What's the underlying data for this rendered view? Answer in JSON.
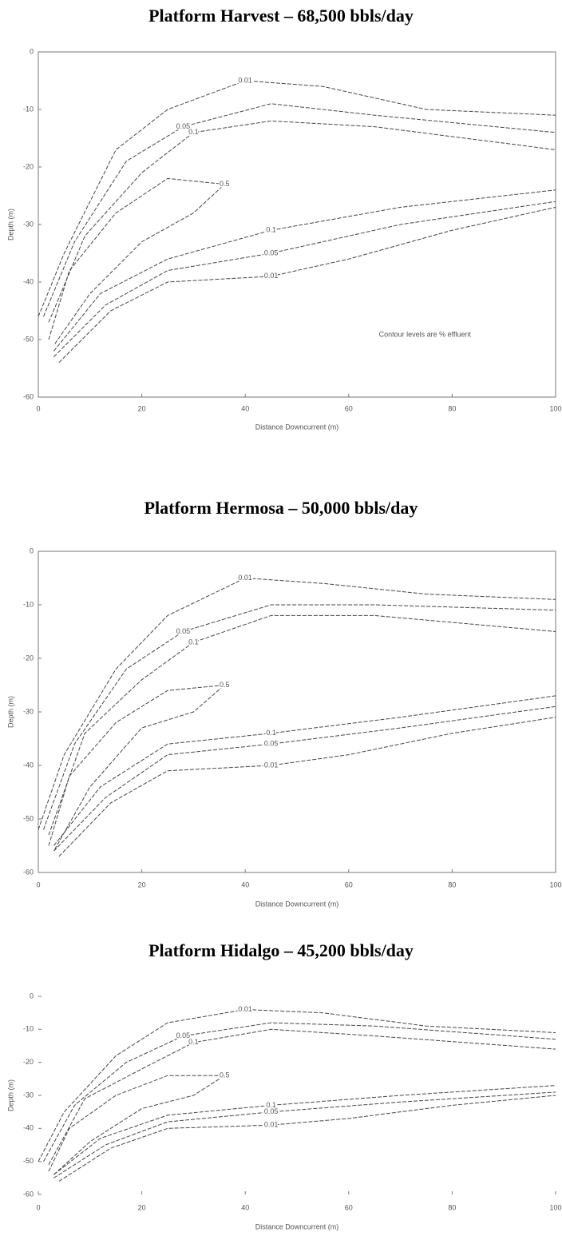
{
  "chart_data": [
    {
      "type": "contour",
      "title": "Platform Harvest – 68,500 bbls/day",
      "xlabel": "Distance Downcurrent (m)",
      "ylabel": "Depth (m)",
      "annotation": "Contour levels are % effluent",
      "frame": true,
      "xlim": [
        0,
        100
      ],
      "xticks": [
        0,
        20,
        40,
        60,
        80,
        100
      ],
      "ylim": [
        -60,
        0
      ],
      "yticks": [
        0,
        -10,
        -20,
        -30,
        -40,
        -50,
        -60
      ],
      "contours": [
        {
          "level": 0.01,
          "x": [
            0,
            5,
            15,
            25,
            40,
            55,
            75,
            100
          ],
          "y": [
            -46,
            -35,
            -17,
            -10,
            -5,
            -6,
            -10,
            -11
          ]
        },
        {
          "level": 0.05,
          "x": [
            1,
            7,
            17,
            28,
            45,
            65,
            100
          ],
          "y": [
            -46,
            -33,
            -19,
            -13,
            -9,
            -11,
            -14
          ]
        },
        {
          "level": 0.1,
          "x": [
            2,
            9,
            20,
            30,
            45,
            65,
            100
          ],
          "y": [
            -47,
            -32,
            -21,
            -14,
            -12,
            -13,
            -17
          ]
        },
        {
          "level": 0.5,
          "x": [
            2,
            6,
            15,
            25,
            36,
            30,
            20,
            10,
            3
          ],
          "y": [
            -50,
            -38,
            -28,
            -22,
            -23,
            -28,
            -33,
            -42,
            -51
          ]
        },
        {
          "level": 0.1,
          "x": [
            3,
            12,
            25,
            45,
            70,
            100
          ],
          "y": [
            -52,
            -42,
            -36,
            -31,
            -27,
            -24
          ]
        },
        {
          "level": 0.05,
          "x": [
            3,
            13,
            25,
            45,
            70,
            100
          ],
          "y": [
            -53,
            -44,
            -38,
            -35,
            -30,
            -26
          ]
        },
        {
          "level": 0.01,
          "x": [
            4,
            14,
            25,
            45,
            60,
            80,
            100
          ],
          "y": [
            -54,
            -45,
            -40,
            -39,
            -36,
            -31,
            -27
          ]
        }
      ]
    },
    {
      "type": "contour",
      "title": "Platform Hermosa – 50,000 bbls/day",
      "xlabel": "Distance Downcurrent (m)",
      "ylabel": "Depth (m)",
      "frame": true,
      "xlim": [
        0,
        100
      ],
      "xticks": [
        0,
        20,
        40,
        60,
        80,
        100
      ],
      "ylim": [
        -60,
        0
      ],
      "yticks": [
        0,
        -10,
        -20,
        -30,
        -40,
        -50,
        -60
      ],
      "contours": [
        {
          "level": 0.01,
          "x": [
            0,
            5,
            15,
            25,
            40,
            55,
            75,
            100
          ],
          "y": [
            -52,
            -38,
            -22,
            -12,
            -5,
            -6,
            -8,
            -9
          ]
        },
        {
          "level": 0.05,
          "x": [
            1,
            7,
            17,
            28,
            45,
            65,
            100
          ],
          "y": [
            -52,
            -36,
            -22,
            -15,
            -10,
            -10,
            -11
          ]
        },
        {
          "level": 0.1,
          "x": [
            2,
            9,
            20,
            30,
            45,
            65,
            100
          ],
          "y": [
            -53,
            -34,
            -24,
            -17,
            -12,
            -12,
            -15
          ]
        },
        {
          "level": 0.5,
          "x": [
            2,
            6,
            15,
            25,
            36,
            30,
            20,
            10,
            3
          ],
          "y": [
            -55,
            -42,
            -32,
            -26,
            -25,
            -30,
            -33,
            -44,
            -56
          ]
        },
        {
          "level": 0.1,
          "x": [
            3,
            12,
            25,
            45,
            70,
            100
          ],
          "y": [
            -55,
            -44,
            -36,
            -34,
            -31,
            -27
          ]
        },
        {
          "level": 0.05,
          "x": [
            3,
            13,
            25,
            45,
            70,
            100
          ],
          "y": [
            -56,
            -46,
            -38,
            -36,
            -33,
            -29
          ]
        },
        {
          "level": 0.01,
          "x": [
            4,
            14,
            25,
            45,
            60,
            80,
            100
          ],
          "y": [
            -57,
            -47,
            -41,
            -40,
            -38,
            -34,
            -31
          ]
        }
      ]
    },
    {
      "type": "contour",
      "title": "Platform Hidalgo – 45,200 bbls/day",
      "xlabel": "Distance Downcurrent (m)",
      "ylabel": "Depth (m)",
      "frame": false,
      "xlim": [
        0,
        100
      ],
      "xticks": [
        0,
        20,
        40,
        60,
        80,
        100
      ],
      "ylim": [
        -60,
        0
      ],
      "yticks": [
        0,
        -10,
        -20,
        -30,
        -40,
        -50,
        -60
      ],
      "contours": [
        {
          "level": 0.01,
          "x": [
            0,
            5,
            15,
            25,
            40,
            55,
            75,
            100
          ],
          "y": [
            -50,
            -35,
            -18,
            -8,
            -4,
            -5,
            -9,
            -11
          ]
        },
        {
          "level": 0.05,
          "x": [
            1,
            7,
            17,
            28,
            45,
            65,
            100
          ],
          "y": [
            -50,
            -33,
            -20,
            -12,
            -8,
            -9,
            -13
          ]
        },
        {
          "level": 0.1,
          "x": [
            2,
            9,
            20,
            30,
            45,
            65,
            100
          ],
          "y": [
            -51,
            -31,
            -22,
            -14,
            -10,
            -12,
            -16
          ]
        },
        {
          "level": 0.5,
          "x": [
            2,
            6,
            15,
            25,
            36,
            30,
            20,
            10,
            3
          ],
          "y": [
            -53,
            -40,
            -30,
            -24,
            -24,
            -30,
            -34,
            -44,
            -54
          ]
        },
        {
          "level": 0.1,
          "x": [
            3,
            12,
            25,
            45,
            70,
            100
          ],
          "y": [
            -54,
            -43,
            -36,
            -33,
            -30,
            -27
          ]
        },
        {
          "level": 0.05,
          "x": [
            3,
            13,
            25,
            45,
            70,
            100
          ],
          "y": [
            -55,
            -45,
            -38,
            -35,
            -32,
            -29
          ]
        },
        {
          "level": 0.01,
          "x": [
            4,
            14,
            25,
            45,
            60,
            80,
            100
          ],
          "y": [
            -56,
            -46,
            -40,
            -39,
            -37,
            -33,
            -30
          ]
        }
      ]
    }
  ]
}
